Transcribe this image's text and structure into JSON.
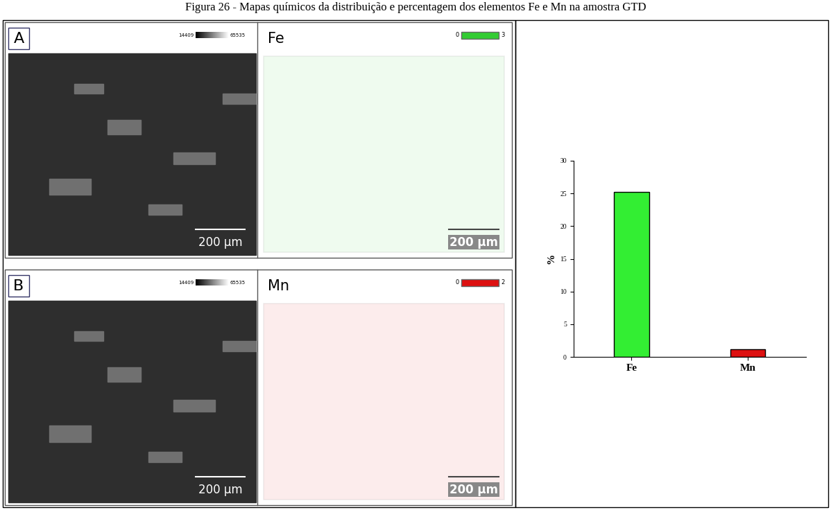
{
  "title": "Figura 26 - Mapas químicos da distribuição e percentagem dos elementos Fe e Mn na amostra GTD",
  "panels": [
    {
      "label": "A",
      "image_scale_bar": "200 µm",
      "grayscale_range": [
        14409,
        65535
      ],
      "element": "Fe",
      "color": "#33cc33",
      "map_range": [
        0,
        3
      ],
      "map_scale_bar": "200 µm"
    },
    {
      "label": "B",
      "image_scale_bar": "200 µm",
      "grayscale_range": [
        14409,
        65535
      ],
      "element": "Mn",
      "color": "#dd1111",
      "map_range": [
        0,
        2
      ],
      "map_scale_bar": "200 µm"
    }
  ],
  "chart_data": {
    "type": "bar",
    "categories": [
      "Fe",
      "Mn"
    ],
    "values": [
      25.2,
      1.2
    ],
    "colors": [
      "#33ee33",
      "#dd1111"
    ],
    "ylabel": "%",
    "ylim": [
      0,
      30
    ],
    "yticks": [
      0,
      5,
      10,
      15,
      20,
      25,
      30
    ]
  }
}
